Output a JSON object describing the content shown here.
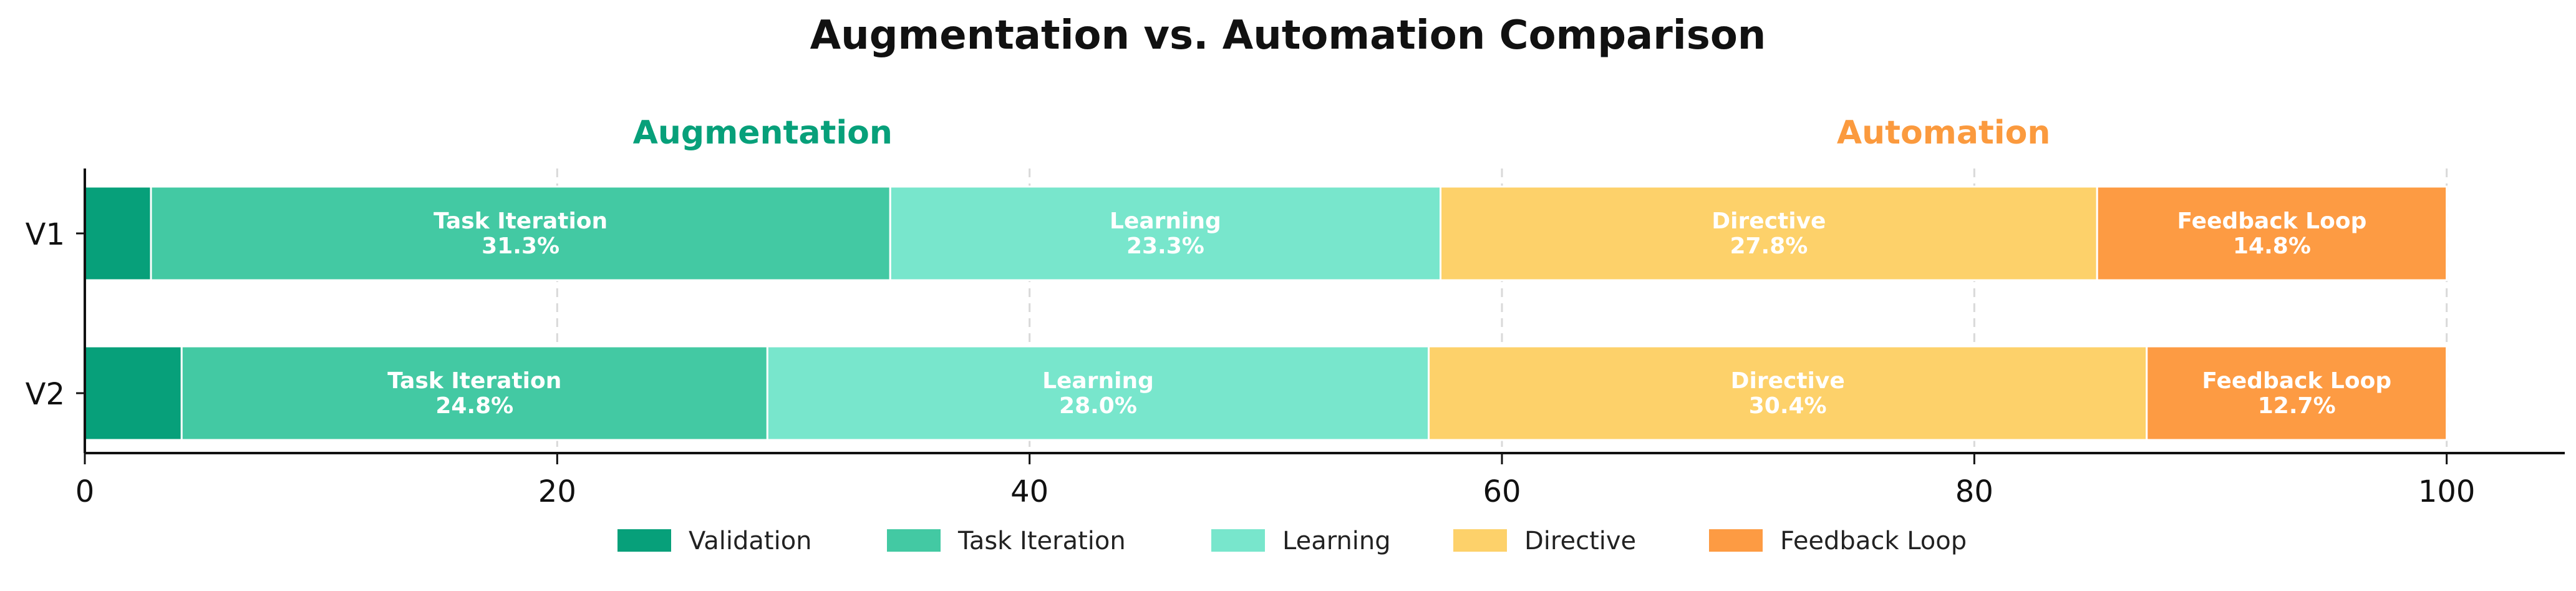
{
  "chart_data": {
    "type": "bar",
    "orientation": "horizontal",
    "stacked": true,
    "title": "Augmentation vs. Automation Comparison",
    "group_labels": [
      {
        "text": "Augmentation",
        "color": "#07a07a"
      },
      {
        "text": "Automation",
        "color": "#fb9a3e"
      }
    ],
    "categories": [
      "V1",
      "V2"
    ],
    "series": [
      {
        "name": "Validation",
        "color": "#07a07a",
        "values": [
          2.8,
          4.1
        ]
      },
      {
        "name": "Task Iteration",
        "color": "#43c9a3",
        "values": [
          31.3,
          24.8
        ]
      },
      {
        "name": "Learning",
        "color": "#78e6cc",
        "values": [
          23.3,
          28.0
        ]
      },
      {
        "name": "Directive",
        "color": "#fdd16a",
        "values": [
          27.8,
          30.4
        ]
      },
      {
        "name": "Feedback Loop",
        "color": "#fd9b43",
        "values": [
          14.8,
          12.7
        ]
      }
    ],
    "segment_labels": [
      [
        "",
        "Task Iteration\n31.3%",
        "Learning\n23.3%",
        "Directive\n27.8%",
        "Feedback Loop\n14.8%"
      ],
      [
        "",
        "Task Iteration\n24.8%",
        "Learning\n28.0%",
        "Directive\n30.4%",
        "Feedback Loop\n12.7%"
      ]
    ],
    "xlim": [
      0,
      105
    ],
    "xticks": [
      0,
      20,
      40,
      60,
      80,
      100
    ],
    "grid": true,
    "legend": "bottom-center"
  }
}
